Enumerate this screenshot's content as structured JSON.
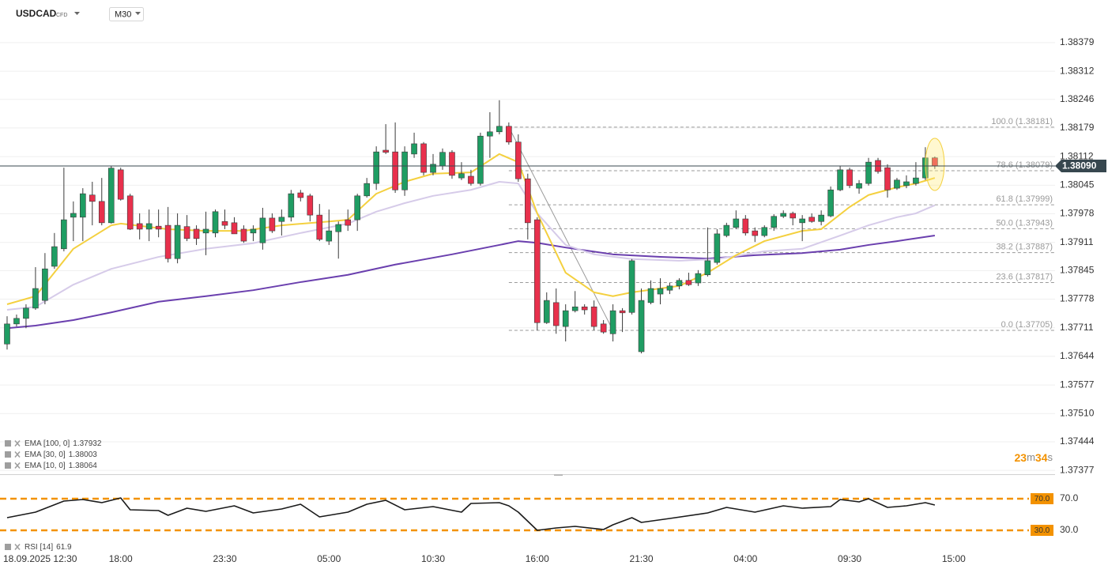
{
  "header": {
    "symbol": "USDCAD",
    "badge": "CFD",
    "timeframe": "M30"
  },
  "chart_data": [
    {
      "type": "candlestick",
      "up_color": "#1f9d63",
      "down_color": "#e8304c",
      "grid": true,
      "xlim": [
        -0.75,
        110.7
      ],
      "xticks": [
        {
          "value": 1,
          "label": "18.09.2025 12:30"
        },
        {
          "value": 12,
          "label": "18:00"
        },
        {
          "value": 23,
          "label": "23:30"
        },
        {
          "value": 34,
          "label": "05:00"
        },
        {
          "value": 45,
          "label": "10:30"
        },
        {
          "value": 56,
          "label": "16:00"
        },
        {
          "value": 67,
          "label": "21:30"
        },
        {
          "value": 78,
          "label": "04:00"
        },
        {
          "value": 89,
          "label": "09:30"
        },
        {
          "value": 100,
          "label": "15:00"
        }
      ],
      "ylim": [
        1.37368,
        1.38414
      ],
      "yticks": [
        1.38379,
        1.38312,
        1.38246,
        1.38179,
        1.38112,
        1.38045,
        1.37978,
        1.37911,
        1.37845,
        1.37778,
        1.37711,
        1.37644,
        1.37577,
        {
          "value": 1.3751,
          "label": "1.37510"
        },
        1.37444,
        1.37377
      ],
      "open": [
        1.37673,
        1.3772,
        1.37733,
        1.37757,
        1.37775,
        1.37855,
        1.37896,
        1.3797,
        1.3797,
        1.38022,
        1.38007,
        1.37957,
        1.38081,
        1.3802,
        1.37955,
        1.37942,
        1.37949,
        1.37951,
        1.37873,
        1.37948,
        1.37942,
        1.37933,
        1.37933,
        1.3796,
        1.37957,
        1.37942,
        1.37933,
        1.3791,
        1.37968,
        1.3796,
        1.3797,
        1.38027,
        1.3802,
        1.37975,
        1.37914,
        1.37936,
        1.37964,
        1.37964,
        1.3802,
        1.38049,
        1.38127,
        1.38123,
        1.38034,
        1.38118,
        1.38142,
        1.38075,
        1.3809,
        1.38122,
        1.38062,
        1.38066,
        1.38049,
        1.3816,
        1.3817,
        1.38183,
        1.38146,
        1.3806,
        1.37964,
        1.37723,
        1.3777,
        1.37714,
        1.37751,
        1.3776,
        1.3776,
        1.3772,
        1.37697,
        1.37751,
        1.37747,
        1.37655,
        1.3777,
        1.3779,
        1.37799,
        1.37809,
        1.37822,
        1.37816,
        1.37835,
        1.37864,
        1.37927,
        1.37946,
        1.37966,
        1.37938,
        1.37927,
        1.37946,
        1.37972,
        1.37979,
        1.37957,
        1.3797,
        1.3796,
        1.37973,
        1.38034,
        1.38081,
        1.38038,
        1.38049,
        1.38103,
        1.38086,
        1.38038,
        1.38044,
        1.38049,
        1.38062,
        1.38109
      ],
      "high": [
        1.37738,
        1.37742,
        1.37766,
        1.37853,
        1.37886,
        1.37933,
        1.38086,
        1.38007,
        1.38038,
        1.38053,
        1.38062,
        1.3809,
        1.38086,
        1.38025,
        1.37979,
        1.37988,
        1.37988,
        1.37994,
        1.37979,
        1.37975,
        1.37951,
        1.37983,
        1.37988,
        1.37988,
        1.3797,
        1.37951,
        1.37951,
        1.37992,
        1.37979,
        1.37988,
        1.38034,
        1.38034,
        1.38025,
        1.38001,
        1.37988,
        1.3796,
        1.37988,
        1.38025,
        1.38062,
        1.38136,
        1.38188,
        1.38192,
        1.38136,
        1.38168,
        1.38146,
        1.38118,
        1.38131,
        1.38127,
        1.38099,
        1.38081,
        1.38168,
        1.38216,
        1.38244,
        1.38192,
        1.38164,
        1.38072,
        1.3797,
        1.37794,
        1.37803,
        1.37766,
        1.37797,
        1.37766,
        1.37775,
        1.37729,
        1.37766,
        1.37757,
        1.37872,
        1.37803,
        1.37822,
        1.37827,
        1.37816,
        1.37827,
        1.3784,
        1.37846,
        1.37946,
        1.37942,
        1.37957,
        1.37986,
        1.37975,
        1.37946,
        1.37951,
        1.37977,
        1.37986,
        1.37983,
        1.37975,
        1.37979,
        1.37986,
        1.38042,
        1.3809,
        1.38086,
        1.38057,
        1.38109,
        1.38109,
        1.38094,
        1.38062,
        1.38068,
        1.38099,
        1.38134,
        1.38112
      ],
      "low": [
        1.3766,
        1.37714,
        1.3771,
        1.37753,
        1.37766,
        1.37849,
        1.3789,
        1.37914,
        1.37914,
        1.37951,
        1.37951,
        1.37955,
        1.38009,
        1.3794,
        1.37918,
        1.37914,
        1.37923,
        1.37864,
        1.37862,
        1.37914,
        1.37905,
        1.37881,
        1.37923,
        1.37942,
        1.37931,
        1.3791,
        1.37914,
        1.37894,
        1.37933,
        1.37927,
        1.3796,
        1.38007,
        1.3796,
        1.37914,
        1.37905,
        1.37873,
        1.37938,
        1.37938,
        1.38016,
        1.38034,
        1.38118,
        1.38027,
        1.3802,
        1.38109,
        1.38068,
        1.38068,
        1.38081,
        1.3806,
        1.38057,
        1.38044,
        1.38044,
        1.38109,
        1.38164,
        1.3814,
        1.38053,
        1.37918,
        1.37705,
        1.3772,
        1.37697,
        1.37679,
        1.37747,
        1.37742,
        1.37705,
        1.37697,
        1.37679,
        1.37701,
        1.37742,
        1.37651,
        1.37766,
        1.37766,
        1.3779,
        1.37801,
        1.37809,
        1.37809,
        1.37831,
        1.37859,
        1.37923,
        1.37942,
        1.37927,
        1.37912,
        1.37923,
        1.37938,
        1.37968,
        1.37951,
        1.37914,
        1.37957,
        1.37951,
        1.3797,
        1.38031,
        1.38038,
        1.38025,
        1.38044,
        1.38072,
        1.38016,
        1.38034,
        1.38038,
        1.38044,
        1.38057,
        1.38083
      ],
      "close": [
        1.3772,
        1.37733,
        1.37757,
        1.37803,
        1.37849,
        1.37901,
        1.37964,
        1.37979,
        1.38025,
        1.38007,
        1.37957,
        1.38085,
        1.38012,
        1.37942,
        1.37942,
        1.37955,
        1.37942,
        1.37873,
        1.37951,
        1.3792,
        1.3792,
        1.37942,
        1.37983,
        1.37951,
        1.37931,
        1.37914,
        1.37942,
        1.37968,
        1.37938,
        1.3797,
        1.38025,
        1.38016,
        1.37975,
        1.37918,
        1.37938,
        1.37953,
        1.37951,
        1.3802,
        1.38049,
        1.38123,
        1.38122,
        1.38034,
        1.38123,
        1.38142,
        1.38075,
        1.38094,
        1.38122,
        1.38068,
        1.38072,
        1.38049,
        1.3816,
        1.3817,
        1.38183,
        1.38146,
        1.3806,
        1.37957,
        1.37723,
        1.37775,
        1.37716,
        1.37751,
        1.3776,
        1.37753,
        1.37714,
        1.37701,
        1.37751,
        1.37746,
        1.37868,
        1.37775,
        1.37803,
        1.37803,
        1.37809,
        1.37822,
        1.37812,
        1.37838,
        1.37868,
        1.37931,
        1.37951,
        1.37966,
        1.37933,
        1.37927,
        1.37946,
        1.37972,
        1.37979,
        1.37968,
        1.37966,
        1.3796,
        1.37975,
        1.38034,
        1.38081,
        1.38044,
        1.38049,
        1.38099,
        1.38077,
        1.38034,
        1.38057,
        1.38053,
        1.38062,
        1.38109,
        1.3809
      ],
      "series": [
        {
          "name": "EMA [100, 0]",
          "last": 1.37932,
          "color": "#6a3fae",
          "x": [
            0,
            3,
            7,
            11,
            16,
            21,
            26,
            31,
            36,
            41,
            47,
            52,
            54,
            56,
            59,
            64,
            69,
            74,
            79,
            84,
            88,
            91,
            94,
            98
          ],
          "values": [
            1.3771,
            1.37716,
            1.37729,
            1.37747,
            1.37772,
            1.37785,
            1.37799,
            1.37818,
            1.37835,
            1.37859,
            1.37883,
            1.37905,
            1.37914,
            1.3791,
            1.37899,
            1.37883,
            1.37877,
            1.37873,
            1.37881,
            1.37886,
            1.37894,
            1.37905,
            1.37914,
            1.37927
          ]
        },
        {
          "name": "EMA [30, 0]",
          "last": 1.38003,
          "color": "#d6cbe9",
          "x": [
            0,
            3,
            7,
            11,
            16,
            21,
            26,
            31,
            36,
            39,
            42,
            45,
            49,
            52,
            54,
            56,
            59,
            62,
            66,
            71,
            75,
            80,
            84,
            88,
            91,
            94,
            96,
            98
          ],
          "values": [
            1.37753,
            1.3776,
            1.37812,
            1.37849,
            1.37877,
            1.37896,
            1.37909,
            1.37933,
            1.37955,
            1.37983,
            1.38003,
            1.3802,
            1.38034,
            1.38053,
            1.38049,
            1.37979,
            1.37905,
            1.37883,
            1.37872,
            1.37868,
            1.37872,
            1.3789,
            1.37896,
            1.37927,
            1.37951,
            1.3797,
            1.37979,
            1.37998
          ]
        },
        {
          "name": "EMA [10, 0]",
          "last": 1.38064,
          "color": "#f4d03f",
          "x": [
            0,
            3,
            7,
            11,
            12,
            17,
            21,
            25,
            29,
            34,
            36,
            39,
            42,
            45,
            49,
            52,
            54,
            56,
            59,
            62,
            64,
            66,
            71,
            74,
            77,
            80,
            84,
            86,
            89,
            91,
            94,
            96,
            98
          ],
          "values": [
            1.37766,
            1.37785,
            1.37896,
            1.37951,
            1.37955,
            1.37942,
            1.37938,
            1.37938,
            1.37951,
            1.3796,
            1.37964,
            1.38025,
            1.38053,
            1.38072,
            1.38075,
            1.38118,
            1.38099,
            1.37979,
            1.3784,
            1.37794,
            1.37785,
            1.37794,
            1.37809,
            1.3784,
            1.37881,
            1.37914,
            1.37938,
            1.37942,
            1.37994,
            1.38022,
            1.3804,
            1.38049,
            1.38062
          ]
        }
      ],
      "fibonacci": {
        "color": "#9a9a9a",
        "levels": [
          {
            "value": 1.38181,
            "label": "100.0 (1.38181)"
          },
          {
            "value": 1.38079,
            "label": "78.6 (1.38079)"
          },
          {
            "value": 1.37999,
            "label": "61.8 (1.37999)"
          },
          {
            "value": 1.37943,
            "label": "50.0 (1.37943)"
          },
          {
            "value": 1.37887,
            "label": "38.2 (1.37887)"
          },
          {
            "value": 1.37817,
            "label": "23.6 (1.37817)"
          },
          {
            "value": 1.37705,
            "label": "0.0 (1.37705)"
          }
        ],
        "x": [
          53,
          64
        ],
        "values": [
          1.38181,
          1.37705
        ]
      },
      "last_price": {
        "value": 1.3809,
        "label": "1.38090"
      },
      "countdown": [
        "23",
        "m",
        "34",
        "s"
      ]
    },
    {
      "type": "line",
      "xlim": [
        -0.75,
        110.7
      ],
      "ylim": [
        8,
        98
      ],
      "yticks": [
        {
          "value": 70,
          "label": "70.0"
        },
        {
          "value": 30,
          "label": "30.0"
        }
      ],
      "band_color": "#f39200",
      "series": [
        {
          "name": "RSI [14]",
          "last": 61.9,
          "color": "#1a1a1a",
          "x": [
            0,
            3,
            6,
            8,
            10,
            12,
            13,
            16,
            17,
            19,
            21,
            24,
            26,
            29,
            31,
            33,
            36,
            38,
            40,
            42,
            45,
            48,
            49,
            52,
            53,
            54,
            56,
            58,
            60,
            63,
            64,
            66,
            67,
            70,
            74,
            76,
            79,
            82,
            84,
            87,
            88,
            90,
            91,
            93,
            95,
            97,
            98
          ],
          "values": [
            46,
            53,
            67,
            69,
            65,
            71,
            56,
            55,
            49,
            58,
            54,
            61,
            52,
            57,
            63,
            47,
            53,
            63,
            68,
            56,
            60,
            53,
            64,
            65,
            61,
            53,
            30,
            33,
            35,
            31,
            37,
            46,
            40,
            45,
            52,
            59,
            53,
            61,
            58,
            60,
            69,
            66,
            70,
            59,
            61,
            65,
            62
          ]
        }
      ]
    }
  ]
}
